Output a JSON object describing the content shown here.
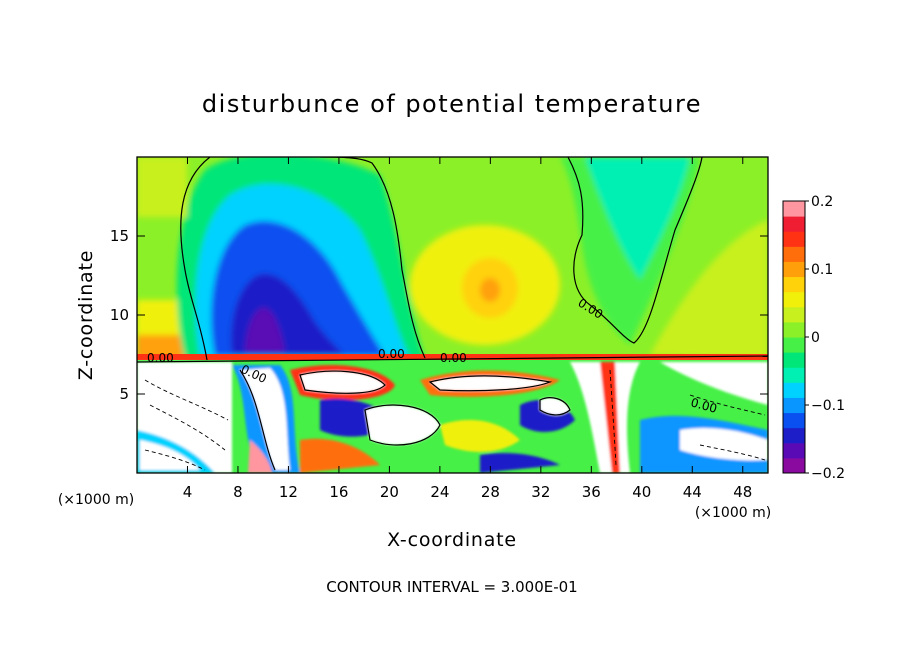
{
  "chart_data": {
    "type": "heatmap",
    "title": "disturbunce of potential temperature",
    "xlabel": "X-coordinate",
    "ylabel": "Z-coordinate",
    "x_unit_left": "(×1000 m)",
    "x_unit_right": "(×1000 m)",
    "footer": "CONTOUR INTERVAL = 3.000E-01",
    "xlim": [
      0,
      50
    ],
    "ylim": [
      0,
      20
    ],
    "x_ticks": [
      4,
      8,
      12,
      16,
      20,
      24,
      28,
      32,
      36,
      40,
      44,
      48
    ],
    "x_tick_labels": [
      "4",
      "8",
      "12",
      "16",
      "20",
      "24",
      "28",
      "32",
      "36",
      "40",
      "44",
      "48"
    ],
    "y_ticks": [
      5,
      10,
      15
    ],
    "y_tick_labels": [
      "5",
      "10",
      "15"
    ],
    "colorbar": {
      "range": [
        -0.2,
        0.2
      ],
      "labels": [
        "0.2",
        "0.1",
        "0",
        "−0.1",
        "−0.2"
      ],
      "values": [
        0.2,
        0.1,
        0,
        -0.1,
        -0.2
      ],
      "colors": [
        "#8a0aa0",
        "#5a0ab4",
        "#1e1ec8",
        "#0a50f0",
        "#0a96ff",
        "#00d2ff",
        "#00f0b4",
        "#00e678",
        "#46f046",
        "#8cf028",
        "#c8f01e",
        "#f0f00a",
        "#ffd20a",
        "#ffa00a",
        "#ff6e0a",
        "#ff3214",
        "#f01e32",
        "#ff96a0"
      ]
    },
    "contour_labels": [
      "0.00",
      "0.00",
      "0.00",
      "0.00",
      "0.00",
      "0.00"
    ]
  }
}
